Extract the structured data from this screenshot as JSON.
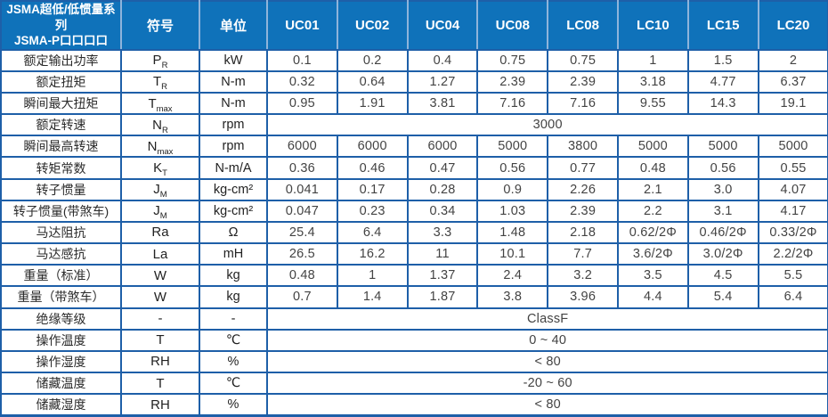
{
  "table": {
    "header": {
      "title_line1": "JSMA超低/低惯量系列",
      "title_line2": "JSMA-P口口口口",
      "symbol_col": "符号",
      "unit_col": "单位",
      "model_cols": [
        "UC01",
        "UC02",
        "UC04",
        "UC08",
        "LC08",
        "LC10",
        "LC15",
        "LC20"
      ]
    },
    "rows": [
      {
        "label": "额定输出功率",
        "symbol": {
          "base": "P",
          "sub": "R"
        },
        "unit": "kW",
        "values": [
          "0.1",
          "0.2",
          "0.4",
          "0.75",
          "0.75",
          "1",
          "1.5",
          "2"
        ]
      },
      {
        "label": "额定扭矩",
        "symbol": {
          "base": "T",
          "sub": "R"
        },
        "unit": "N-m",
        "values": [
          "0.32",
          "0.64",
          "1.27",
          "2.39",
          "2.39",
          "3.18",
          "4.77",
          "6.37"
        ]
      },
      {
        "label": "瞬间最大扭矩",
        "symbol": {
          "base": "T",
          "sub": "max"
        },
        "unit": "N-m",
        "values": [
          "0.95",
          "1.91",
          "3.81",
          "7.16",
          "7.16",
          "9.55",
          "14.3",
          "19.1"
        ]
      },
      {
        "label": "额定转速",
        "symbol": {
          "base": "N",
          "sub": "R"
        },
        "unit": "rpm",
        "merged": "3000"
      },
      {
        "label": "瞬间最高转速",
        "symbol": {
          "base": "N",
          "sub": "max"
        },
        "unit": "rpm",
        "values": [
          "6000",
          "6000",
          "6000",
          "5000",
          "3800",
          "5000",
          "5000",
          "5000"
        ]
      },
      {
        "label": "转矩常数",
        "symbol": {
          "base": "K",
          "sub": "T"
        },
        "unit": "N-m/A",
        "values": [
          "0.36",
          "0.46",
          "0.47",
          "0.56",
          "0.77",
          "0.48",
          "0.56",
          "0.55"
        ]
      },
      {
        "label": "转子惯量",
        "symbol": {
          "base": "J",
          "sub": "M"
        },
        "unit": "kg-cm²",
        "values": [
          "0.041",
          "0.17",
          "0.28",
          "0.9",
          "2.26",
          "2.1",
          "3.0",
          "4.07"
        ]
      },
      {
        "label": "转子惯量(带煞车)",
        "symbol": {
          "base": "J",
          "sub": "M"
        },
        "unit": "kg-cm²",
        "values": [
          "0.047",
          "0.23",
          "0.34",
          "1.03",
          "2.39",
          "2.2",
          "3.1",
          "4.17"
        ]
      },
      {
        "label": "马达阻抗",
        "symbol": {
          "base": "Ra",
          "sub": ""
        },
        "unit": "Ω",
        "values": [
          "25.4",
          "6.4",
          "3.3",
          "1.48",
          "2.18",
          "0.62/2Φ",
          "0.46/2Φ",
          "0.33/2Φ"
        ]
      },
      {
        "label": "马达感抗",
        "symbol": {
          "base": "La",
          "sub": ""
        },
        "unit": "mH",
        "values": [
          "26.5",
          "16.2",
          "11",
          "10.1",
          "7.7",
          "3.6/2Φ",
          "3.0/2Φ",
          "2.2/2Φ"
        ]
      },
      {
        "label": "重量（标准）",
        "symbol": {
          "base": "W",
          "sub": ""
        },
        "unit": "kg",
        "values": [
          "0.48",
          "1",
          "1.37",
          "2.4",
          "3.2",
          "3.5",
          "4.5",
          "5.5"
        ]
      },
      {
        "label": "重量（带煞车）",
        "symbol": {
          "base": "W",
          "sub": ""
        },
        "unit": "kg",
        "values": [
          "0.7",
          "1.4",
          "1.87",
          "3.8",
          "3.96",
          "4.4",
          "5.4",
          "6.4"
        ]
      },
      {
        "label": "绝缘等级",
        "symbol": {
          "base": "-",
          "sub": ""
        },
        "unit": "-",
        "merged": "ClassF"
      },
      {
        "label": "操作温度",
        "symbol": {
          "base": "T",
          "sub": ""
        },
        "unit": "℃",
        "merged": "0 ~ 40"
      },
      {
        "label": "操作湿度",
        "symbol": {
          "base": "RH",
          "sub": ""
        },
        "unit": "%",
        "merged": "< 80"
      },
      {
        "label": "储藏温度",
        "symbol": {
          "base": "T",
          "sub": ""
        },
        "unit": "℃",
        "merged": "-20 ~ 60"
      },
      {
        "label": "储藏湿度",
        "symbol": {
          "base": "RH",
          "sub": ""
        },
        "unit": "%",
        "merged": "< 80"
      }
    ],
    "colors": {
      "header_bg": "#0f72ba",
      "grid_line": "#1e5fa8",
      "header_separator": "#8fb4db",
      "header_text": "#ffffff",
      "body_text": "#404040"
    }
  }
}
